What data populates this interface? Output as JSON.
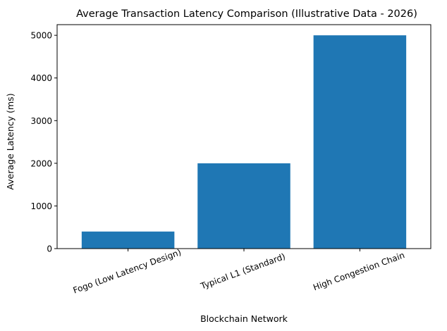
{
  "chart_data": {
    "type": "bar",
    "title": "Average Transaction Latency Comparison (Illustrative Data - 2026)",
    "xlabel": "Blockchain Network",
    "ylabel": "Average Latency (ms)",
    "categories": [
      "Fogo (Low Latency Design)",
      "Typical L1 (Standard)",
      "High Congestion Chain"
    ],
    "values": [
      400,
      2000,
      5000
    ],
    "ylim": [
      0,
      5250
    ],
    "yticks": [
      0,
      1000,
      2000,
      3000,
      4000,
      5000
    ],
    "ytick_labels": [
      "0",
      "1000",
      "2000",
      "3000",
      "4000",
      "5000"
    ],
    "xtick_rotation_deg": 20,
    "bar_color": "#1f77b4",
    "grid": false,
    "legend": "none"
  }
}
